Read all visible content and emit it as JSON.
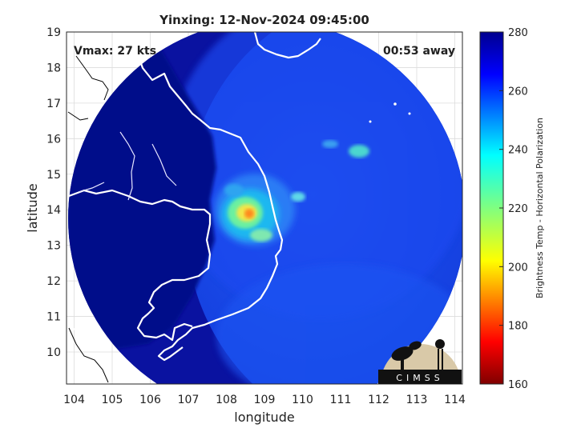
{
  "title": "Yinxing: 12-Nov-2024 09:45:00",
  "overlay": {
    "vmax": "Vmax: 27 kts",
    "away": "00:53 away"
  },
  "axes": {
    "xlabel": "longitude",
    "ylabel": "latitude",
    "xticks": [
      "104",
      "105",
      "106",
      "107",
      "108",
      "109",
      "110",
      "111",
      "112",
      "113",
      "114"
    ],
    "yticks": [
      "19",
      "18",
      "17",
      "16",
      "15",
      "14",
      "13",
      "12",
      "11",
      "10"
    ],
    "xlim": [
      103.8,
      114.2
    ],
    "ylim": [
      9.1,
      19.0
    ],
    "grid": true
  },
  "colorbar": {
    "label": "Brightness Temp - Horizontal Polarization",
    "ticks": [
      "280",
      "260",
      "240",
      "220",
      "200",
      "180",
      "160"
    ],
    "range": [
      160,
      280
    ],
    "colormap": "jet"
  },
  "logo": {
    "text": "CIMSS"
  },
  "storm": {
    "center_lon": 108.5,
    "center_lat": 13.85
  },
  "colors": {
    "background": "#0a0f96",
    "swath_mid": "#1e4fe6",
    "coast": "#ffffff",
    "border": "#000000"
  }
}
